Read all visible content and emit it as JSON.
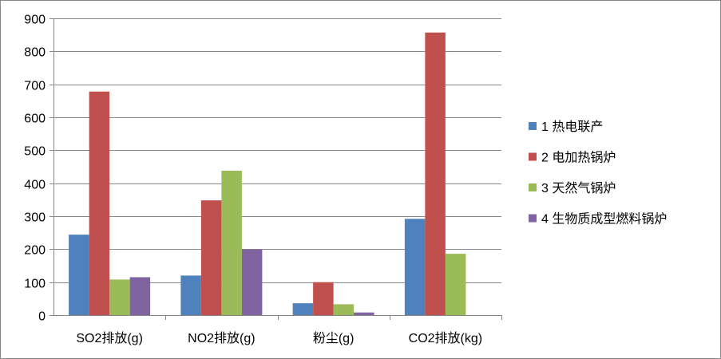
{
  "chart_data": {
    "type": "bar",
    "title": "",
    "xlabel": "",
    "ylabel": "",
    "categories": [
      "SO2排放(g)",
      "NO2排放(g)",
      "粉尘(g)",
      "CO2排放(kg)"
    ],
    "ylim": [
      0,
      900
    ],
    "yticks": [
      0,
      100,
      200,
      300,
      400,
      500,
      600,
      700,
      800,
      900
    ],
    "grid": true,
    "legend_position": "right",
    "series": [
      {
        "name": "1 热电联产",
        "color": "#4f81bd",
        "values": [
          244,
          120,
          36,
          292
        ]
      },
      {
        "name": "2 电加热锅炉",
        "color": "#c0504d",
        "values": [
          678,
          348,
          100,
          857
        ]
      },
      {
        "name": "3 天然气锅炉",
        "color": "#9bbb59",
        "values": [
          108,
          438,
          33,
          186
        ]
      },
      {
        "name": "4 生物质成型燃料锅炉",
        "color": "#8064a2",
        "values": [
          115,
          199,
          8,
          0
        ]
      }
    ]
  }
}
